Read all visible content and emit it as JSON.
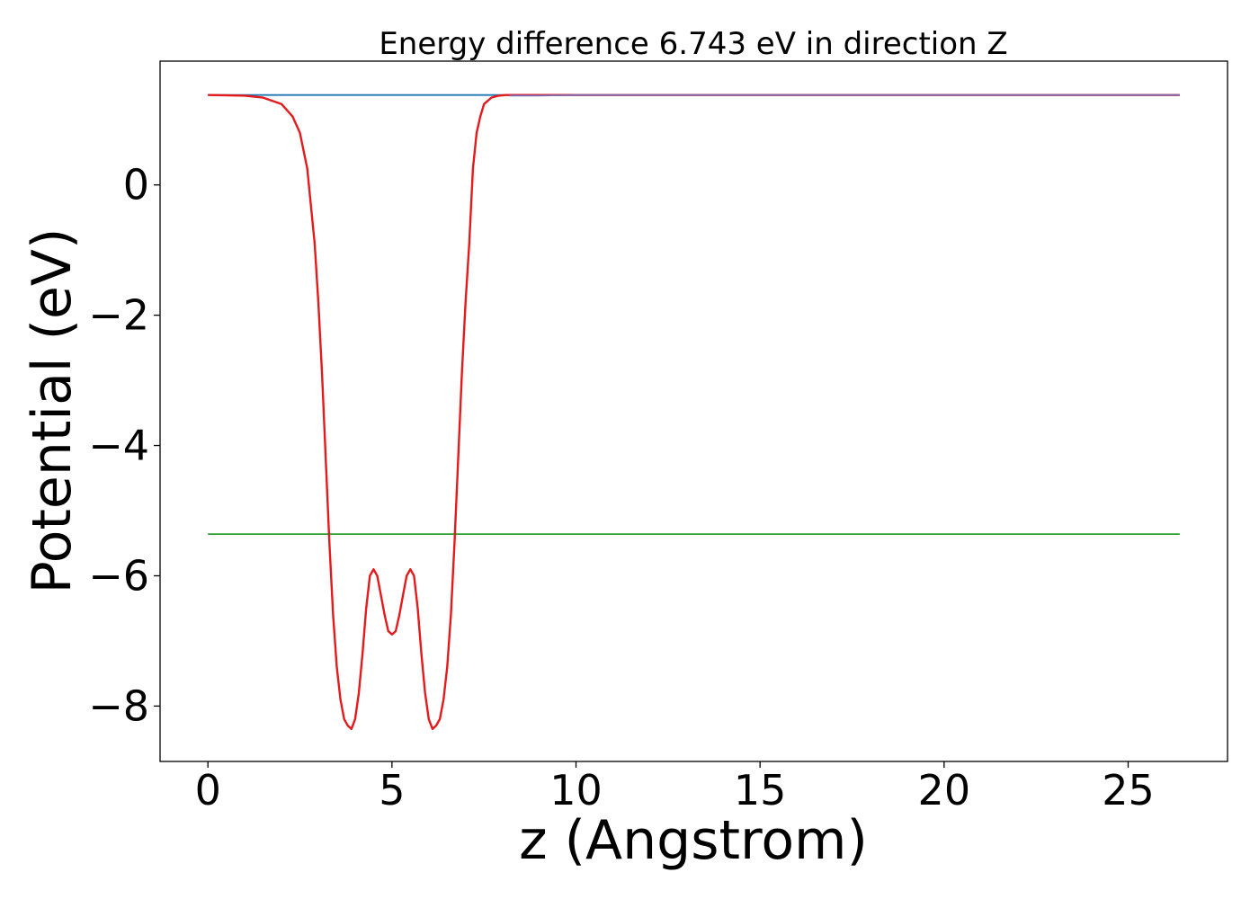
{
  "chart_data": {
    "type": "line",
    "title": "Energy difference 6.743 eV in direction Z",
    "xlabel": "z (Angstrom)",
    "ylabel": "Potential (eV)",
    "xlim": [
      -1.3,
      27.7
    ],
    "ylim": [
      -8.85,
      1.9
    ],
    "grid": false,
    "x_ticks": [
      0,
      5,
      10,
      15,
      20,
      25
    ],
    "x_tick_labels": [
      "0",
      "5",
      "10",
      "15",
      "20",
      "25"
    ],
    "y_ticks": [
      -8,
      -6,
      -4,
      -2,
      0
    ],
    "y_tick_labels": [
      "−8",
      "−6",
      "−4",
      "−2",
      "0"
    ],
    "series": [
      {
        "color": "#1f77b4",
        "x": [
          0,
          26.4
        ],
        "y": [
          1.38,
          1.38
        ]
      },
      {
        "color": "#2ca02c",
        "x": [
          0,
          26.4
        ],
        "y": [
          -5.36,
          -5.36
        ]
      },
      {
        "color": "#e41a1c",
        "x": [
          0,
          1.0,
          1.5,
          2.0,
          2.3,
          2.5,
          2.7,
          2.9,
          3.0,
          3.1,
          3.2,
          3.3,
          3.4,
          3.5,
          3.6,
          3.7,
          3.8,
          3.9,
          4.0,
          4.1,
          4.2,
          4.3,
          4.4,
          4.5,
          4.6,
          4.7,
          4.8,
          4.9,
          5.0,
          5.1,
          5.2,
          5.3,
          5.4,
          5.5,
          5.6,
          5.7,
          5.8,
          5.9,
          6.0,
          6.1,
          6.2,
          6.3,
          6.4,
          6.5,
          6.6,
          6.7,
          6.8,
          6.9,
          7.0,
          7.1,
          7.2,
          7.3,
          7.4,
          7.5,
          7.7,
          7.9,
          8.1,
          8.4,
          8.8,
          9.3,
          10.0,
          12.0,
          16.0,
          20.0,
          26.4
        ],
        "y": [
          1.38,
          1.37,
          1.34,
          1.24,
          1.05,
          0.8,
          0.25,
          -0.9,
          -1.8,
          -2.9,
          -4.2,
          -5.5,
          -6.6,
          -7.4,
          -7.9,
          -8.2,
          -8.3,
          -8.35,
          -8.2,
          -7.8,
          -7.2,
          -6.5,
          -6.0,
          -5.9,
          -6.0,
          -6.3,
          -6.6,
          -6.85,
          -6.9,
          -6.85,
          -6.6,
          -6.3,
          -6.0,
          -5.9,
          -6.0,
          -6.5,
          -7.2,
          -7.8,
          -8.2,
          -8.35,
          -8.3,
          -8.2,
          -7.9,
          -7.4,
          -6.6,
          -5.5,
          -4.2,
          -2.9,
          -1.8,
          -0.9,
          0.25,
          0.8,
          1.05,
          1.24,
          1.34,
          1.37,
          1.38,
          1.38,
          1.38,
          1.38,
          1.38,
          1.38,
          1.38,
          1.38,
          1.38
        ]
      },
      {
        "color": "#7b6fb8",
        "x": [
          8.2,
          9.0,
          10.0,
          12.0,
          26.4
        ],
        "y": [
          1.37,
          1.37,
          1.38,
          1.38,
          1.38
        ]
      }
    ]
  }
}
